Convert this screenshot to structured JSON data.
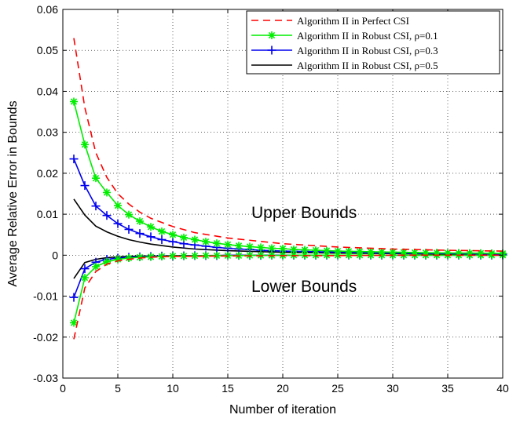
{
  "chart_data": {
    "type": "line",
    "title": "",
    "xlabel": "Number of iteration",
    "ylabel": "Average Relative Error in Bounds",
    "xlim": [
      0,
      40
    ],
    "ylim": [
      -0.03,
      0.06
    ],
    "xticks": [
      0,
      5,
      10,
      15,
      20,
      25,
      30,
      35,
      40
    ],
    "xtick_labels": [
      "0",
      "5",
      "10",
      "15",
      "20",
      "25",
      "30",
      "35",
      "40"
    ],
    "yticks": [
      -0.03,
      -0.02,
      -0.01,
      0,
      0.01,
      0.02,
      0.03,
      0.04,
      0.05,
      0.06
    ],
    "ytick_labels": [
      "-0.03",
      "-0.02",
      "-0.01",
      "0",
      "0.01",
      "0.02",
      "0.03",
      "0.04",
      "0.05",
      "0.06"
    ],
    "grid": true,
    "legend_position": "top-right",
    "annotations": [
      {
        "text": "Upper Bounds",
        "x": 24.5,
        "y": 0.0052
      },
      {
        "text": "Lower Bounds",
        "x": 24.5,
        "y": -0.0075
      }
    ],
    "series": [
      {
        "name": "Algorithm II in Perfect CSI",
        "color": "#ff0000",
        "style": "dashed",
        "marker": "none",
        "upper": {
          "x": [
            1,
            2,
            3,
            4,
            5,
            6,
            7,
            8,
            10,
            12,
            15,
            20,
            25,
            30,
            35,
            40
          ],
          "y": [
            0.053,
            0.036,
            0.025,
            0.019,
            0.015,
            0.0125,
            0.0105,
            0.009,
            0.007,
            0.0055,
            0.0042,
            0.0028,
            0.002,
            0.0015,
            0.0012,
            0.001
          ]
        },
        "lower": {
          "x": [
            1,
            2,
            3,
            4,
            5,
            6,
            7,
            8,
            10,
            15,
            20,
            25,
            30,
            35,
            40
          ],
          "y": [
            -0.0205,
            -0.008,
            -0.004,
            -0.0022,
            -0.0014,
            -0.001,
            -0.0007,
            -0.0005,
            -0.0003,
            -0.0002,
            -0.0001,
            -0.0001,
            0,
            0,
            0
          ]
        }
      },
      {
        "name": "Algorithm II in Robust CSI, ρ=0.1",
        "color": "#00ee00",
        "style": "solid",
        "marker": "asterisk",
        "upper": {
          "x": [
            1,
            2,
            3,
            4,
            5,
            6,
            7,
            8,
            9,
            10,
            11,
            12,
            13,
            14,
            15,
            16,
            17,
            18,
            19,
            20,
            21,
            22,
            23,
            24,
            25,
            26,
            27,
            28,
            29,
            30,
            31,
            32,
            33,
            34,
            35,
            36,
            37,
            38,
            39,
            40
          ],
          "y": [
            0.0375,
            0.027,
            0.0188,
            0.0153,
            0.0121,
            0.0099,
            0.0083,
            0.0069,
            0.0058,
            0.005,
            0.0043,
            0.0038,
            0.0033,
            0.0029,
            0.0026,
            0.0023,
            0.0021,
            0.0019,
            0.0017,
            0.0016,
            0.0014,
            0.0013,
            0.0012,
            0.0011,
            0.001,
            0.00095,
            0.0009,
            0.00085,
            0.0008,
            0.00075,
            0.0007,
            0.00065,
            0.0006,
            0.00058,
            0.00055,
            0.00052,
            0.0005,
            0.00048,
            0.00045,
            0.00042
          ]
        },
        "lower": {
          "x": [
            1,
            2,
            3,
            4,
            5,
            6,
            7,
            8,
            9,
            10,
            11,
            12,
            13,
            14,
            15,
            16,
            17,
            18,
            19,
            20,
            21,
            22,
            23,
            24,
            25,
            26,
            27,
            28,
            29,
            30,
            31,
            32,
            33,
            34,
            35,
            36,
            37,
            38,
            39,
            40
          ],
          "y": [
            -0.0165,
            -0.0055,
            -0.0028,
            -0.0016,
            -0.001,
            -0.0007,
            -0.0005,
            -0.0004,
            -0.0003,
            -0.0002,
            -0.0002,
            -0.00015,
            -0.0001,
            -0.0001,
            -0.0001,
            -0.0001,
            -5e-05,
            -5e-05,
            -5e-05,
            -5e-05,
            0,
            0,
            0,
            0,
            0,
            0,
            0,
            0,
            0,
            0,
            0,
            0,
            0,
            0,
            0,
            0,
            0,
            0,
            0,
            0
          ]
        }
      },
      {
        "name": "Algorithm II in Robust CSI, ρ=0.3",
        "color": "#0000ee",
        "style": "solid",
        "marker": "plus",
        "upper": {
          "x": [
            1,
            2,
            3,
            4,
            5,
            6,
            7,
            8,
            9,
            10,
            11,
            12,
            13,
            14,
            15,
            16,
            17,
            18,
            19,
            20,
            21,
            22,
            23,
            24,
            25,
            26,
            27,
            28,
            29,
            30,
            31,
            32,
            33,
            34,
            35,
            36,
            37,
            38,
            39,
            40
          ],
          "y": [
            0.0235,
            0.017,
            0.012,
            0.0097,
            0.0077,
            0.0063,
            0.0053,
            0.0045,
            0.0038,
            0.0033,
            0.0028,
            0.0025,
            0.0022,
            0.0019,
            0.0017,
            0.0015,
            0.0014,
            0.0012,
            0.0011,
            0.001,
            0.00095,
            0.0009,
            0.00085,
            0.0008,
            0.00075,
            0.0007,
            0.00065,
            0.0006,
            0.00056,
            0.00052,
            0.0005,
            0.00047,
            0.00045,
            0.00042,
            0.0004,
            0.00038,
            0.00036,
            0.00034,
            0.00032,
            0.0003
          ]
        },
        "lower": {
          "x": [
            1,
            2,
            3,
            4,
            5,
            6,
            7,
            8,
            9,
            10,
            11,
            12,
            13,
            14,
            15,
            16,
            17,
            18,
            19,
            20,
            21,
            22,
            23,
            24,
            25,
            26,
            27,
            28,
            29,
            30,
            31,
            32,
            33,
            34,
            35,
            36,
            37,
            38,
            39,
            40
          ],
          "y": [
            -0.0103,
            -0.0033,
            -0.0017,
            -0.001,
            -0.0007,
            -0.0005,
            -0.0004,
            -0.0003,
            -0.0002,
            -0.0002,
            -0.00015,
            -0.0001,
            -0.0001,
            -0.0001,
            -5e-05,
            -5e-05,
            -5e-05,
            -5e-05,
            0,
            0,
            0,
            0,
            0,
            0,
            0,
            0,
            0,
            0,
            0,
            0,
            0,
            0,
            0,
            0,
            0,
            0,
            0,
            0,
            0,
            0
          ]
        }
      },
      {
        "name": "Algorithm II in Robust CSI, ρ=0.5",
        "color": "#000000",
        "style": "solid",
        "marker": "none",
        "upper": {
          "x": [
            1,
            2,
            3,
            4,
            5,
            6,
            7,
            8,
            10,
            12,
            15,
            20,
            25,
            30,
            35,
            40
          ],
          "y": [
            0.0137,
            0.0098,
            0.0071,
            0.0057,
            0.0046,
            0.0038,
            0.0032,
            0.0027,
            0.002,
            0.0015,
            0.0011,
            0.0007,
            0.0005,
            0.0004,
            0.0003,
            0.00025
          ]
        },
        "lower": {
          "x": [
            1,
            2,
            3,
            4,
            5,
            6,
            7,
            8,
            10,
            15,
            20,
            25,
            30,
            35,
            40
          ],
          "y": [
            -0.0057,
            -0.0018,
            -0.001,
            -0.0006,
            -0.0004,
            -0.0003,
            -0.0002,
            -0.0002,
            -0.0001,
            -5e-05,
            0,
            0,
            0,
            0,
            0
          ]
        }
      }
    ]
  }
}
